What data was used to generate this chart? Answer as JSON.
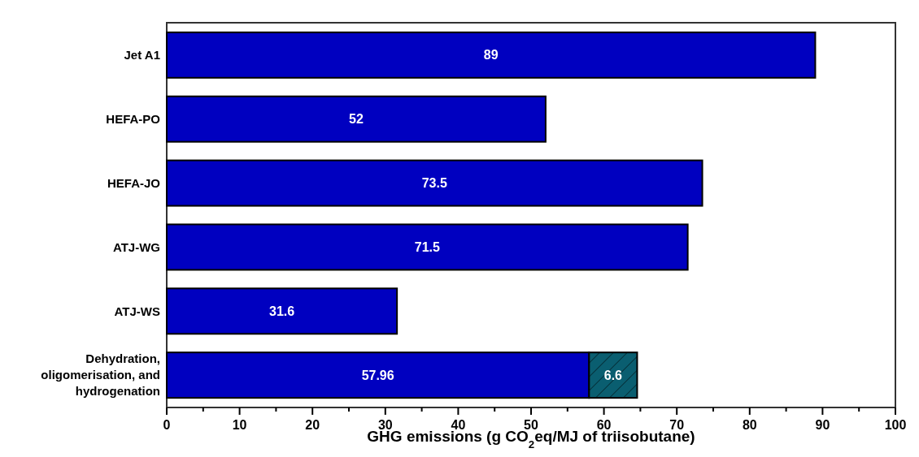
{
  "chart_data": {
    "type": "bar",
    "orientation": "horizontal",
    "stacked": true,
    "categories": [
      "Jet A1",
      "HEFA-PO",
      "HEFA-JO",
      "ATJ-WG",
      "ATJ-WS",
      "Dehydration, oligomerisation, and hydrogenation"
    ],
    "series": [
      {
        "color": "#0000c0",
        "values": [
          89,
          52,
          73.5,
          71.5,
          31.6,
          57.96
        ]
      },
      {
        "color": "#0a5e70",
        "values": [
          null,
          null,
          null,
          null,
          null,
          6.6
        ]
      }
    ],
    "xlabel": "GHG emissions (g CO$_{2}$eq/MJ of triisobutane)",
    "xlim": [
      0,
      100
    ],
    "xticks": [
      0,
      {
        "value": 5,
        "label": null
      },
      10,
      {
        "value": 15,
        "label": null
      },
      20,
      {
        "value": 25,
        "label": null
      },
      30,
      {
        "value": 35,
        "label": null
      },
      40,
      {
        "value": 45,
        "label": null
      },
      50,
      {
        "value": 55,
        "label": null
      },
      60,
      {
        "value": 65,
        "label": null
      },
      70,
      {
        "value": 75,
        "label": null
      },
      80,
      {
        "value": 85,
        "label": null
      },
      90,
      {
        "value": 95,
        "label": null
      },
      100
    ],
    "data_labels": true
  }
}
